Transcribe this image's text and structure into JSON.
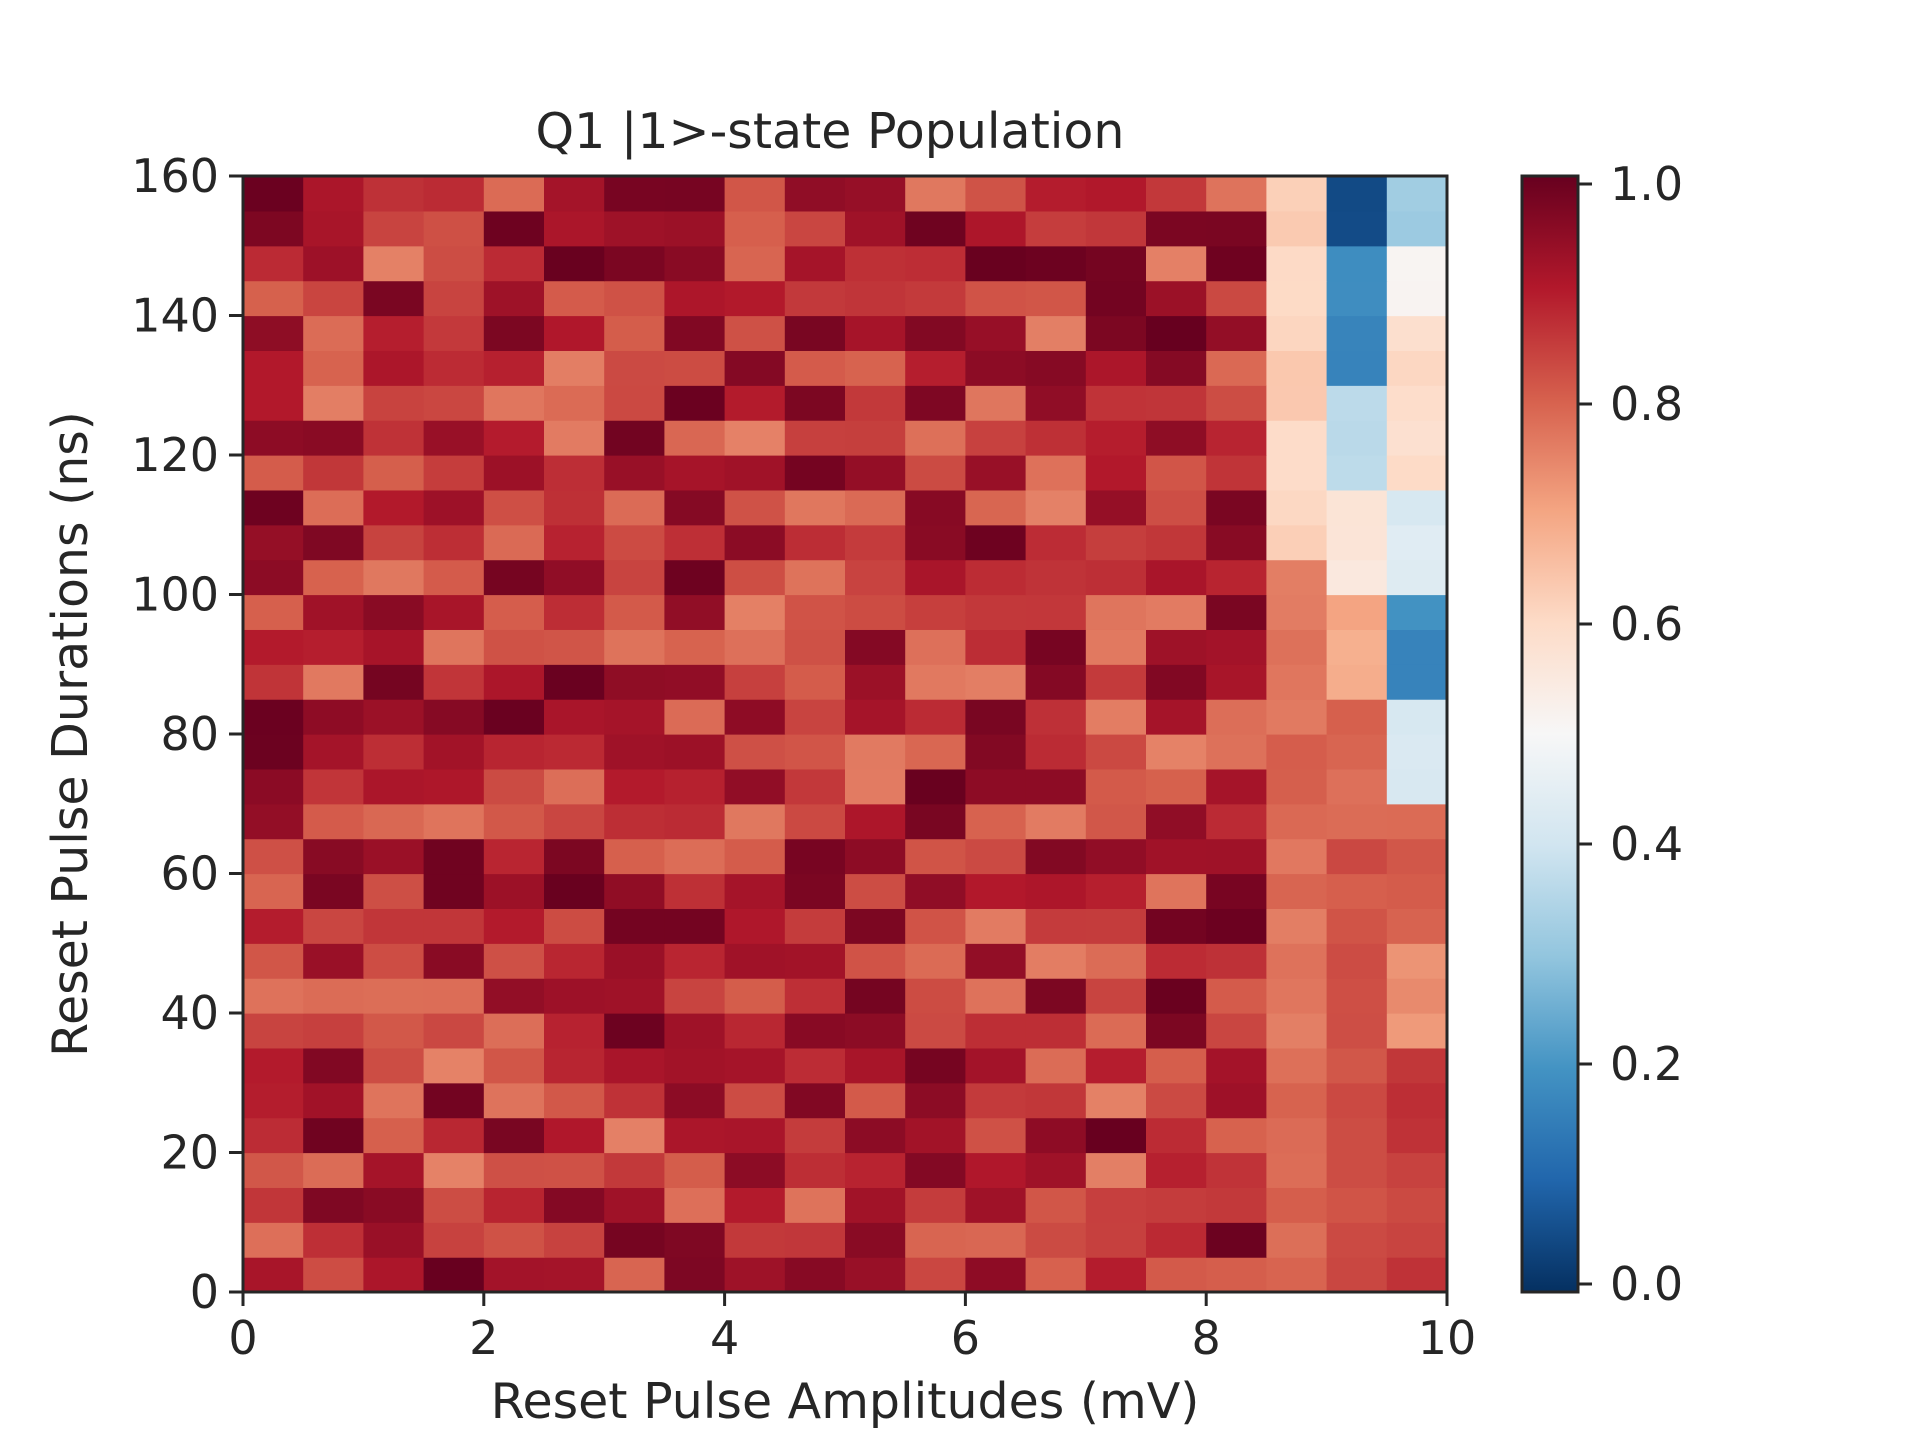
{
  "chart_data": {
    "type": "heatmap",
    "title": "Q1 |1>-state Population",
    "xlabel": "Reset Pulse Amplitudes (mV)",
    "ylabel": "Reset Pulse Durations (ns)",
    "xlim": [
      0,
      10
    ],
    "ylim": [
      0,
      160
    ],
    "x_ticks": [
      "0",
      "2",
      "4",
      "6",
      "8",
      "10"
    ],
    "y_ticks": [
      "0",
      "20",
      "40",
      "60",
      "80",
      "100",
      "120",
      "140",
      "160"
    ],
    "colorbar": {
      "colormap": "RdBu_r",
      "range": [
        0.0,
        1.0
      ],
      "ticks": [
        "0.0",
        "0.2",
        "0.4",
        "0.6",
        "0.8",
        "1.0"
      ]
    },
    "grid": false,
    "n_amplitudes": 20,
    "n_durations": 32,
    "value_model": {
      "population_range_bulk": [
        0.75,
        1.0
      ],
      "column_18_by_duration_band": [
        {
          "from_ns": 0,
          "to_ns": 105,
          "value": 0.78
        },
        {
          "from_ns": 105,
          "to_ns": 160,
          "value": 0.62
        }
      ],
      "column_19_by_duration_band": [
        {
          "from_ns": 0,
          "to_ns": 65,
          "value": 0.82
        },
        {
          "from_ns": 65,
          "to_ns": 85,
          "value": 0.78
        },
        {
          "from_ns": 85,
          "to_ns": 100,
          "value": 0.7
        },
        {
          "from_ns": 100,
          "to_ns": 115,
          "value": 0.55
        },
        {
          "from_ns": 115,
          "to_ns": 130,
          "value": 0.35
        },
        {
          "from_ns": 130,
          "to_ns": 150,
          "value": 0.18
        },
        {
          "from_ns": 150,
          "to_ns": 160,
          "value": 0.05
        }
      ],
      "column_20_by_duration_band": [
        {
          "from_ns": 0,
          "to_ns": 35,
          "value": 0.85
        },
        {
          "from_ns": 35,
          "to_ns": 50,
          "value": 0.72
        },
        {
          "from_ns": 50,
          "to_ns": 70,
          "value": 0.8
        },
        {
          "from_ns": 70,
          "to_ns": 85,
          "value": 0.42
        },
        {
          "from_ns": 85,
          "to_ns": 100,
          "value": 0.18
        },
        {
          "from_ns": 100,
          "to_ns": 115,
          "value": 0.42
        },
        {
          "from_ns": 115,
          "to_ns": 140,
          "value": 0.6
        },
        {
          "from_ns": 140,
          "to_ns": 150,
          "value": 0.5
        },
        {
          "from_ns": 150,
          "to_ns": 160,
          "value": 0.33
        }
      ]
    }
  }
}
